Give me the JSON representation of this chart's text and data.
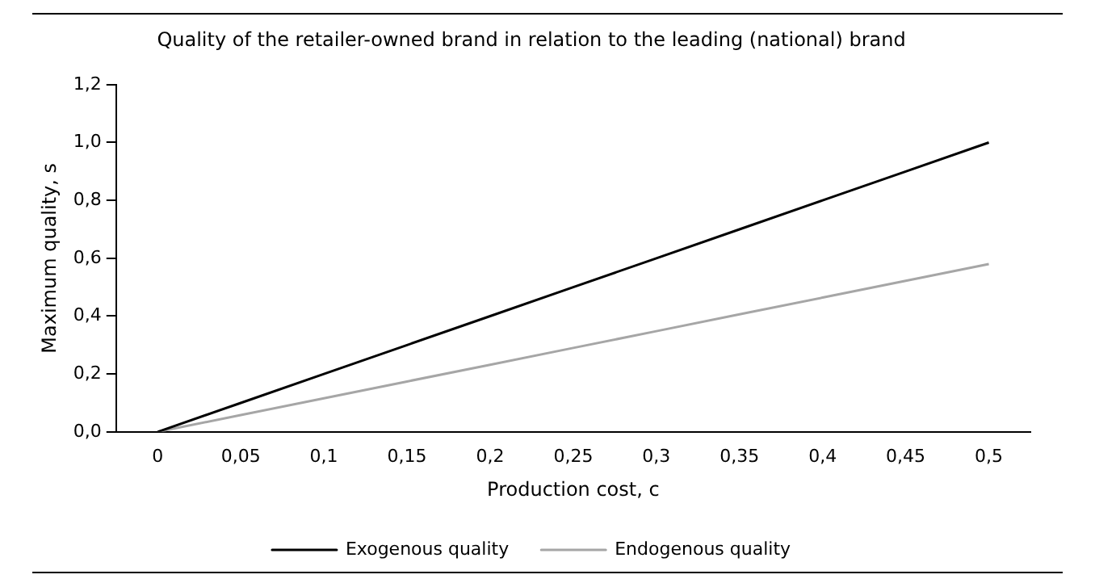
{
  "chart_data": {
    "type": "line",
    "title": "Quality of the retailer-owned brand in relation to the leading (national) brand",
    "xlabel": "Production cost, c",
    "ylabel": "Maximum quality, s",
    "categories": [
      "0",
      "0,05",
      "0,1",
      "0,15",
      "0,2",
      "0,25",
      "0,3",
      "0,35",
      "0,4",
      "0,45",
      "0,5"
    ],
    "series": [
      {
        "name": "Exogenous quality",
        "color": "#000000",
        "values": [
          0,
          0.1,
          0.2,
          0.3,
          0.4,
          0.5,
          0.6,
          0.7,
          0.8,
          0.9,
          1.0
        ]
      },
      {
        "name": "Endogenous quality",
        "color": "#a6a6a6",
        "values": [
          0,
          0.058,
          0.116,
          0.174,
          0.232,
          0.29,
          0.348,
          0.406,
          0.464,
          0.522,
          0.58
        ]
      }
    ],
    "ylim": [
      0,
      1.2
    ],
    "yticks": [
      {
        "value": 0,
        "label": "0,0"
      },
      {
        "value": 0.2,
        "label": "0,2"
      },
      {
        "value": 0.4,
        "label": "0,4"
      },
      {
        "value": 0.6,
        "label": "0,6"
      },
      {
        "value": 0.8,
        "label": "0,8"
      },
      {
        "value": 1,
        "label": "1,0"
      },
      {
        "value": 1.2,
        "label": "1,2"
      }
    ],
    "grid": false,
    "legend": "bottom",
    "marker": "none",
    "line_style": "solid"
  }
}
